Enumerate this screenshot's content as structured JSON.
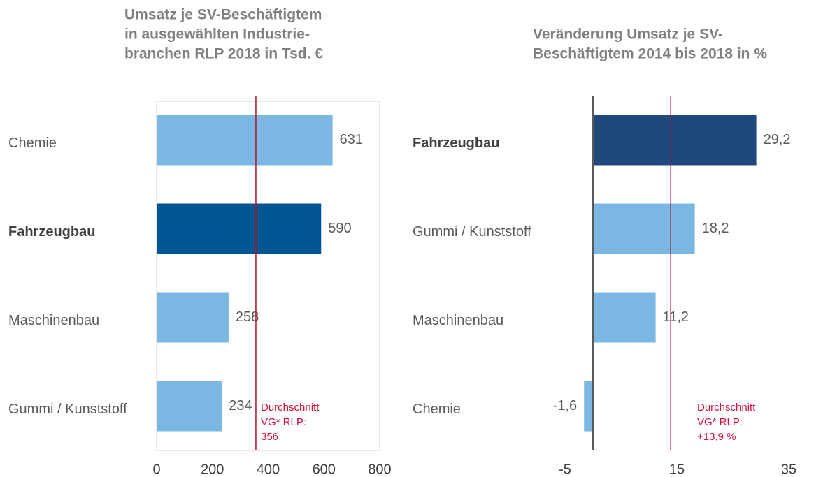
{
  "chart_data": [
    {
      "type": "bar",
      "orientation": "horizontal",
      "title": [
        "Umsatz je SV-Beschäftigtem",
        "in ausgewählten Industrie-",
        "branchen RLP 2018 in Tsd. €"
      ],
      "categories": [
        "Chemie",
        "Fahrzeugbau",
        "Maschinenbau",
        "Gummi / Kunststoff"
      ],
      "values": [
        631,
        590,
        258,
        234
      ],
      "colors": [
        "#7ab8e3",
        "#005691",
        "#7ab8e3",
        "#7ab8e3"
      ],
      "highlight": 1,
      "xlim": [
        0,
        800
      ],
      "xticks": [
        0,
        200,
        400,
        600,
        800
      ],
      "frame": true,
      "reference_line": {
        "value": 356,
        "label": [
          "Durchschnitt",
          "VG* RLP:",
          "356"
        ],
        "color": "#b0122b"
      }
    },
    {
      "type": "bar",
      "orientation": "horizontal",
      "title": [
        "Veränderung Umsatz je SV-",
        "Beschäftigtem 2014 bis 2018 in %"
      ],
      "categories": [
        "Fahrzeugbau",
        "Gummi / Kunststoff",
        "Maschinenbau",
        "Chemie"
      ],
      "values": [
        29.2,
        18.2,
        11.2,
        -1.6
      ],
      "value_labels": [
        "29,2",
        "18,2",
        "11,2",
        "-1,6"
      ],
      "colors": [
        "#1f497d",
        "#7ab8e3",
        "#7ab8e3",
        "#7ab8e3"
      ],
      "highlight": 0,
      "xlim": [
        -5,
        35
      ],
      "xticks": [
        -5,
        15,
        35
      ],
      "frame": false,
      "reference_line": {
        "value": 13.9,
        "label": [
          "Durchschnitt",
          "VG* RLP:",
          "+13,9 %"
        ],
        "color": "#b0122b"
      }
    }
  ]
}
